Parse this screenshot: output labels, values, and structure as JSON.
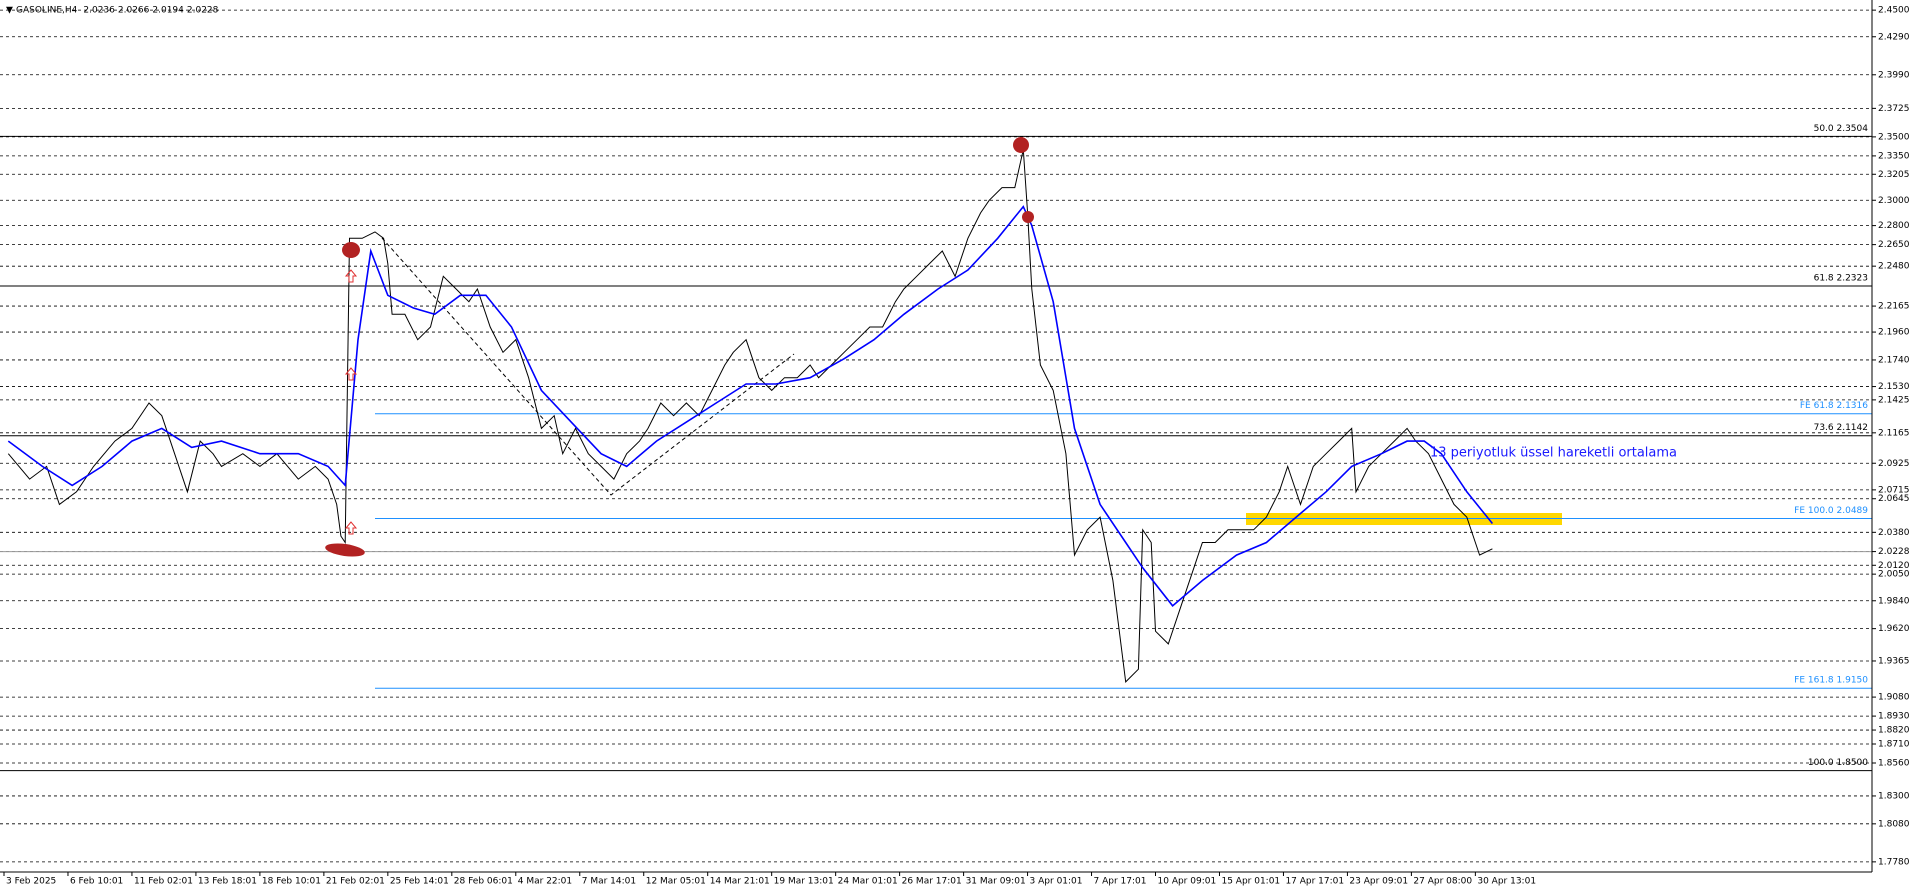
{
  "chart_data": {
    "type": "line",
    "header": {
      "symbol": "GASOLINE,H4",
      "ohlc": [
        2.0236,
        2.0266,
        2.0194,
        2.0228
      ]
    },
    "annotation": "13 periyotluk üssel hareketli ortalama",
    "xlim": [
      0,
      438
    ],
    "xticks": [
      {
        "value": 0,
        "label": "3 Feb 2025"
      },
      {
        "value": 15,
        "label": "6 Feb 10:01"
      },
      {
        "value": 30,
        "label": "11 Feb 02:01"
      },
      {
        "value": 45,
        "label": "13 Feb 18:01"
      },
      {
        "value": 60,
        "label": "18 Feb 10:01"
      },
      {
        "value": 75,
        "label": "21 Feb 02:01"
      },
      {
        "value": 90,
        "label": "25 Feb 14:01"
      },
      {
        "value": 105,
        "label": "28 Feb 06:01"
      },
      {
        "value": 120,
        "label": "4 Mar 22:01"
      },
      {
        "value": 135,
        "label": "7 Mar 14:01"
      },
      {
        "value": 150,
        "label": "12 Mar 05:01"
      },
      {
        "value": 165,
        "label": "14 Mar 21:01"
      },
      {
        "value": 180,
        "label": "19 Mar 13:01"
      },
      {
        "value": 195,
        "label": "24 Mar 01:01"
      },
      {
        "value": 210,
        "label": "26 Mar 17:01"
      },
      {
        "value": 225,
        "label": "31 Mar 09:01"
      },
      {
        "value": 240,
        "label": "3 Apr 01:01"
      },
      {
        "value": 255,
        "label": "7 Apr 17:01"
      },
      {
        "value": 270,
        "label": "10 Apr 09:01"
      },
      {
        "value": 285,
        "label": "15 Apr 01:01"
      },
      {
        "value": 300,
        "label": "17 Apr 17:01"
      },
      {
        "value": 315,
        "label": "23 Apr 09:01"
      },
      {
        "value": 330,
        "label": "27 Apr 08:00"
      },
      {
        "value": 345,
        "label": "30 Apr 13:01"
      }
    ],
    "ylim": [
      1.77,
      2.458
    ],
    "yticks": [
      {
        "value": 2.45,
        "label": "2.4500"
      },
      {
        "value": 2.429,
        "label": "2.4290"
      },
      {
        "value": 2.399,
        "label": "2.3990"
      },
      {
        "value": 2.3725,
        "label": "2.3725"
      },
      {
        "value": 2.35,
        "label": "2.3500"
      },
      {
        "value": 2.335,
        "label": "2.3350"
      },
      {
        "value": 2.3205,
        "label": "2.3205"
      },
      {
        "value": 2.3,
        "label": "2.3000"
      },
      {
        "value": 2.28,
        "label": "2.2800"
      },
      {
        "value": 2.265,
        "label": "2.2650"
      },
      {
        "value": 2.248,
        "label": "2.2480"
      },
      {
        "value": 2.2165,
        "label": "2.2165"
      },
      {
        "value": 2.196,
        "label": "2.1960"
      },
      {
        "value": 2.174,
        "label": "2.1740"
      },
      {
        "value": 2.153,
        "label": "2.1530"
      },
      {
        "value": 2.1425,
        "label": "2.1425"
      },
      {
        "value": 2.1165,
        "label": "2.1165"
      },
      {
        "value": 2.0925,
        "label": "2.0925"
      },
      {
        "value": 2.0715,
        "label": "2.0715"
      },
      {
        "value": 2.0645,
        "label": "2.0645"
      },
      {
        "value": 2.038,
        "label": "2.0380"
      },
      {
        "value": 2.0228,
        "label": "2.0228"
      },
      {
        "value": 2.012,
        "label": "2.0120"
      },
      {
        "value": 2.005,
        "label": "2.0050"
      },
      {
        "value": 1.984,
        "label": "1.9840"
      },
      {
        "value": 1.962,
        "label": "1.9620"
      },
      {
        "value": 1.9365,
        "label": "1.9365"
      },
      {
        "value": 1.908,
        "label": "1.9080"
      },
      {
        "value": 1.893,
        "label": "1.8930"
      },
      {
        "value": 1.882,
        "label": "1.8820"
      },
      {
        "value": 1.871,
        "label": "1.8710"
      },
      {
        "value": 1.856,
        "label": "1.8560"
      },
      {
        "value": 1.83,
        "label": "1.8300"
      },
      {
        "value": 1.808,
        "label": "1.8080"
      },
      {
        "value": 1.778,
        "label": "1.7780"
      }
    ],
    "grid": true,
    "series": [
      {
        "color": "#000000",
        "x": [
          1,
          6,
          10,
          13,
          17,
          21,
          26,
          30,
          34,
          37,
          40,
          43,
          46,
          49,
          51,
          56,
          60,
          64,
          69,
          73,
          76,
          78,
          79,
          80,
          81,
          84,
          87,
          89,
          90,
          91,
          94,
          97,
          100,
          103,
          106,
          109,
          111,
          114,
          117,
          120,
          123,
          126,
          129,
          131,
          134,
          137,
          140,
          143,
          146,
          149,
          151,
          154,
          157,
          160,
          163,
          166,
          169,
          171,
          174,
          177,
          180,
          183,
          186,
          189,
          191,
          194,
          197,
          200,
          203,
          206,
          209,
          211,
          214,
          217,
          220,
          223,
          226,
          229,
          231,
          234,
          237,
          239,
          240,
          241,
          243,
          246,
          249,
          251,
          254,
          257,
          260,
          263,
          266,
          267,
          269,
          270,
          273,
          276,
          279,
          281,
          284,
          287,
          290,
          293,
          296,
          299,
          301,
          304,
          307,
          310,
          313,
          316,
          317,
          320,
          323,
          326,
          329,
          331,
          334,
          337,
          340,
          343,
          346,
          349
        ],
        "values": [
          2.1,
          2.08,
          2.09,
          2.06,
          2.07,
          2.09,
          2.11,
          2.12,
          2.14,
          2.13,
          2.1,
          2.07,
          2.11,
          2.1,
          2.09,
          2.1,
          2.09,
          2.1,
          2.08,
          2.09,
          2.08,
          2.06,
          2.035,
          2.03,
          2.27,
          2.27,
          2.275,
          2.27,
          2.25,
          2.21,
          2.21,
          2.19,
          2.2,
          2.24,
          2.23,
          2.22,
          2.23,
          2.2,
          2.18,
          2.19,
          2.16,
          2.12,
          2.13,
          2.1,
          2.12,
          2.1,
          2.09,
          2.08,
          2.1,
          2.11,
          2.12,
          2.14,
          2.13,
          2.14,
          2.13,
          2.15,
          2.17,
          2.18,
          2.19,
          2.16,
          2.15,
          2.16,
          2.16,
          2.17,
          2.16,
          2.17,
          2.18,
          2.19,
          2.2,
          2.2,
          2.22,
          2.23,
          2.24,
          2.25,
          2.26,
          2.24,
          2.27,
          2.29,
          2.3,
          2.31,
          2.31,
          2.34,
          2.29,
          2.23,
          2.17,
          2.15,
          2.1,
          2.02,
          2.04,
          2.05,
          2.0,
          1.92,
          1.93,
          2.04,
          2.03,
          1.96,
          1.95,
          1.98,
          2.01,
          2.03,
          2.03,
          2.04,
          2.04,
          2.04,
          2.05,
          2.07,
          2.09,
          2.06,
          2.09,
          2.1,
          2.11,
          2.12,
          2.07,
          2.09,
          2.1,
          2.11,
          2.12,
          2.11,
          2.1,
          2.08,
          2.06,
          2.05,
          2.02,
          2.025
        ]
      },
      {
        "color": "#0000ff",
        "x": [
          1,
          9,
          16,
          23,
          30,
          37,
          44,
          51,
          60,
          69,
          76,
          80,
          83,
          86,
          90,
          96,
          101,
          107,
          113,
          119,
          126,
          133,
          140,
          146,
          153,
          160,
          167,
          174,
          181,
          189,
          197,
          204,
          211,
          219,
          226,
          233,
          239,
          241,
          246,
          251,
          257,
          263,
          267,
          274,
          281,
          289,
          296,
          303,
          310,
          316,
          323,
          329,
          333,
          337,
          343,
          349
        ],
        "values": [
          2.11,
          2.09,
          2.075,
          2.09,
          2.11,
          2.12,
          2.105,
          2.11,
          2.1,
          2.1,
          2.09,
          2.075,
          2.19,
          2.26,
          2.225,
          2.215,
          2.21,
          2.225,
          2.225,
          2.2,
          2.15,
          2.125,
          2.1,
          2.09,
          2.11,
          2.125,
          2.14,
          2.155,
          2.155,
          2.16,
          2.175,
          2.19,
          2.21,
          2.23,
          2.245,
          2.27,
          2.295,
          2.28,
          2.22,
          2.12,
          2.06,
          2.03,
          2.01,
          1.98,
          2.0,
          2.02,
          2.03,
          2.05,
          2.07,
          2.09,
          2.1,
          2.11,
          2.11,
          2.1,
          2.07,
          2.045
        ]
      }
    ],
    "levels": [
      {
        "value": 2.3504,
        "label": "50.0 2.3504",
        "color": "#000000"
      },
      {
        "value": 2.2323,
        "label": "61.8 2.2323",
        "color": "#000000"
      },
      {
        "value": 2.1142,
        "label": "73.6 2.1142",
        "color": "#000000"
      },
      {
        "value": 1.85,
        "label": "100.0 1.8500",
        "color": "#000000"
      }
    ],
    "expansion_levels": [
      {
        "value": 2.1316,
        "label": "FE 61.8 2.1316",
        "color": "#1e90ff"
      },
      {
        "value": 2.0489,
        "label": "FE 100.0 2.0489",
        "color": "#1e90ff"
      },
      {
        "value": 1.915,
        "label": "FE 161.8 1.9150",
        "color": "#1e90ff"
      }
    ]
  }
}
